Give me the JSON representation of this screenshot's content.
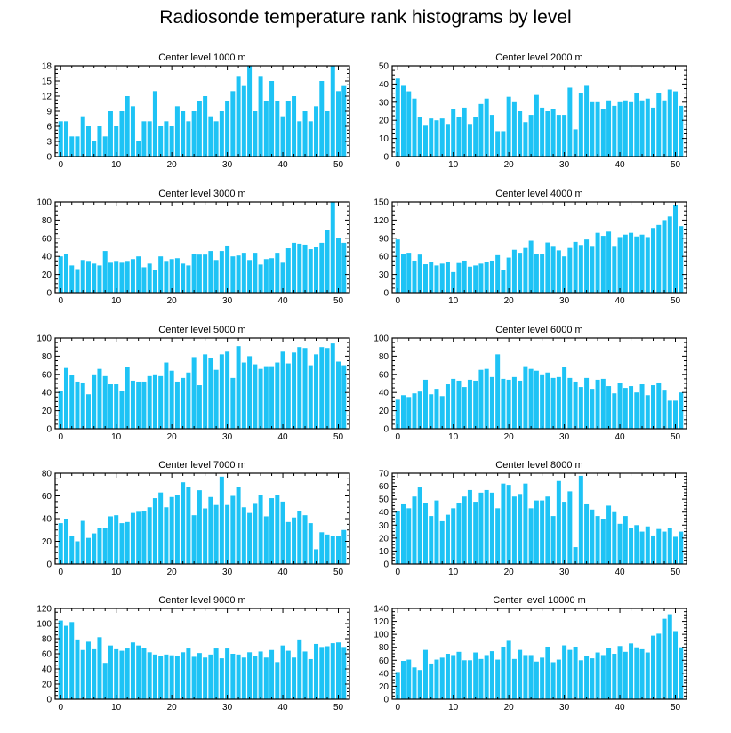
{
  "title": "Radiosonde temperature rank histograms by level",
  "colors": {
    "bar": "#1ec3f5",
    "axis": "#000000",
    "background": "#ffffff"
  },
  "chart_data": [
    {
      "type": "bar",
      "title": "Center level 1000 m",
      "xlim": [
        -1,
        52
      ],
      "xticks": [
        0,
        10,
        20,
        30,
        40,
        50
      ],
      "ylim": [
        0,
        18
      ],
      "yticks": [
        0,
        3,
        6,
        9,
        12,
        15,
        18
      ],
      "values": [
        7,
        7,
        4,
        4,
        8,
        6,
        3,
        6,
        4,
        9,
        6,
        9,
        12,
        10,
        3,
        7,
        7,
        13,
        6,
        7,
        6,
        10,
        9,
        7,
        9,
        11,
        12,
        8,
        7,
        9,
        11,
        13,
        16,
        14,
        18,
        9,
        16,
        11,
        15,
        11,
        8,
        11,
        12,
        7,
        9,
        7,
        10,
        15,
        9,
        18,
        13,
        14
      ]
    },
    {
      "type": "bar",
      "title": "Center level 2000 m",
      "xlim": [
        -1,
        52
      ],
      "xticks": [
        0,
        10,
        20,
        30,
        40,
        50
      ],
      "ylim": [
        0,
        50
      ],
      "yticks": [
        0,
        10,
        20,
        30,
        40,
        50
      ],
      "values": [
        43,
        39,
        36,
        32,
        22,
        17,
        21,
        20,
        21,
        18,
        26,
        22,
        27,
        18,
        22,
        29,
        32,
        23,
        14,
        14,
        33,
        30,
        25,
        19,
        23,
        34,
        27,
        25,
        26,
        23,
        23,
        38,
        15,
        35,
        39,
        30,
        30,
        26,
        31,
        28,
        30,
        31,
        30,
        35,
        31,
        32,
        27,
        35,
        31,
        37,
        36,
        28
      ]
    },
    {
      "type": "bar",
      "title": "Center level 3000 m",
      "xlim": [
        -1,
        52
      ],
      "xticks": [
        0,
        10,
        20,
        30,
        40,
        50
      ],
      "ylim": [
        0,
        100
      ],
      "yticks": [
        0,
        20,
        40,
        60,
        80,
        100
      ],
      "values": [
        40,
        43,
        30,
        26,
        36,
        35,
        32,
        30,
        46,
        33,
        35,
        33,
        35,
        37,
        40,
        28,
        32,
        25,
        40,
        35,
        37,
        38,
        32,
        30,
        43,
        42,
        42,
        46,
        36,
        46,
        52,
        40,
        41,
        44,
        36,
        44,
        31,
        37,
        38,
        44,
        33,
        49,
        55,
        54,
        53,
        48,
        50,
        55,
        69,
        100,
        60,
        55
      ]
    },
    {
      "type": "bar",
      "title": "Center level 4000 m",
      "xlim": [
        -1,
        52
      ],
      "xticks": [
        0,
        10,
        20,
        30,
        40,
        50
      ],
      "ylim": [
        0,
        150
      ],
      "yticks": [
        0,
        30,
        60,
        90,
        120,
        150
      ],
      "values": [
        88,
        64,
        66,
        53,
        63,
        47,
        51,
        45,
        48,
        51,
        34,
        49,
        53,
        43,
        45,
        48,
        50,
        53,
        62,
        37,
        58,
        71,
        66,
        74,
        86,
        64,
        64,
        83,
        76,
        70,
        60,
        74,
        84,
        79,
        88,
        76,
        99,
        94,
        101,
        76,
        92,
        96,
        99,
        93,
        96,
        92,
        107,
        112,
        120,
        126,
        145,
        110
      ]
    },
    {
      "type": "bar",
      "title": "Center level 5000 m",
      "xlim": [
        -1,
        52
      ],
      "xticks": [
        0,
        10,
        20,
        30,
        40,
        50
      ],
      "ylim": [
        0,
        100
      ],
      "yticks": [
        0,
        20,
        40,
        60,
        80,
        100
      ],
      "values": [
        42,
        67,
        59,
        52,
        51,
        38,
        60,
        66,
        58,
        49,
        49,
        42,
        68,
        53,
        52,
        52,
        58,
        60,
        58,
        73,
        64,
        52,
        56,
        62,
        79,
        48,
        82,
        78,
        65,
        82,
        85,
        56,
        91,
        73,
        80,
        71,
        66,
        69,
        69,
        73,
        85,
        72,
        84,
        90,
        89,
        70,
        82,
        90,
        89,
        94,
        74,
        70
      ]
    },
    {
      "type": "bar",
      "title": "Center level 6000 m",
      "xlim": [
        -1,
        52
      ],
      "xticks": [
        0,
        10,
        20,
        30,
        40,
        50
      ],
      "ylim": [
        0,
        100
      ],
      "yticks": [
        0,
        20,
        40,
        60,
        80,
        100
      ],
      "values": [
        32,
        37,
        35,
        39,
        41,
        54,
        38,
        44,
        36,
        49,
        55,
        53,
        46,
        54,
        53,
        65,
        66,
        57,
        82,
        55,
        54,
        57,
        53,
        69,
        66,
        64,
        60,
        62,
        56,
        57,
        68,
        56,
        52,
        46,
        56,
        44,
        54,
        55,
        47,
        39,
        50,
        45,
        47,
        40,
        49,
        37,
        48,
        51,
        43,
        31,
        31,
        40
      ]
    },
    {
      "type": "bar",
      "title": "Center level 7000 m",
      "xlim": [
        -1,
        52
      ],
      "xticks": [
        0,
        10,
        20,
        30,
        40,
        50
      ],
      "ylim": [
        0,
        80
      ],
      "yticks": [
        0,
        20,
        40,
        60,
        80
      ],
      "values": [
        36,
        40,
        25,
        20,
        38,
        23,
        27,
        32,
        32,
        42,
        43,
        36,
        37,
        45,
        46,
        47,
        50,
        58,
        63,
        50,
        59,
        61,
        72,
        68,
        43,
        65,
        49,
        59,
        52,
        77,
        52,
        60,
        68,
        50,
        45,
        53,
        61,
        42,
        58,
        61,
        55,
        37,
        41,
        47,
        43,
        36,
        13,
        28,
        26,
        25,
        25,
        30
      ]
    },
    {
      "type": "bar",
      "title": "Center level 8000 m",
      "xlim": [
        -1,
        52
      ],
      "xticks": [
        0,
        10,
        20,
        30,
        40,
        50
      ],
      "ylim": [
        0,
        70
      ],
      "yticks": [
        0,
        10,
        20,
        30,
        40,
        50,
        60,
        70
      ],
      "values": [
        41,
        46,
        43,
        52,
        59,
        47,
        37,
        49,
        33,
        38,
        43,
        47,
        52,
        57,
        48,
        55,
        57,
        55,
        43,
        62,
        61,
        52,
        54,
        62,
        43,
        49,
        49,
        52,
        37,
        64,
        48,
        56,
        13,
        68,
        46,
        42,
        37,
        35,
        45,
        40,
        31,
        37,
        28,
        30,
        25,
        29,
        22,
        27,
        25,
        28,
        21,
        25
      ]
    },
    {
      "type": "bar",
      "title": "Center level 9000 m",
      "xlim": [
        -1,
        52
      ],
      "xticks": [
        0,
        10,
        20,
        30,
        40,
        50
      ],
      "ylim": [
        0,
        120
      ],
      "yticks": [
        0,
        20,
        40,
        60,
        80,
        100,
        120
      ],
      "values": [
        104,
        97,
        102,
        79,
        65,
        76,
        66,
        82,
        48,
        71,
        66,
        64,
        67,
        75,
        71,
        68,
        62,
        59,
        57,
        59,
        58,
        57,
        62,
        67,
        56,
        61,
        55,
        59,
        67,
        54,
        67,
        60,
        59,
        55,
        62,
        57,
        63,
        55,
        65,
        49,
        71,
        64,
        55,
        79,
        63,
        53,
        73,
        69,
        70,
        74,
        75,
        69
      ]
    },
    {
      "type": "bar",
      "title": "Center level 10000 m",
      "xlim": [
        -1,
        52
      ],
      "xticks": [
        0,
        10,
        20,
        30,
        40,
        50
      ],
      "ylim": [
        0,
        140
      ],
      "yticks": [
        0,
        20,
        40,
        60,
        80,
        100,
        120,
        140
      ],
      "values": [
        42,
        59,
        61,
        49,
        45,
        76,
        55,
        61,
        64,
        70,
        68,
        73,
        60,
        60,
        72,
        62,
        68,
        74,
        61,
        81,
        90,
        62,
        76,
        68,
        68,
        58,
        64,
        81,
        57,
        61,
        83,
        76,
        81,
        60,
        66,
        63,
        72,
        68,
        79,
        70,
        82,
        73,
        86,
        80,
        77,
        72,
        98,
        101,
        124,
        131,
        105,
        80
      ]
    }
  ]
}
